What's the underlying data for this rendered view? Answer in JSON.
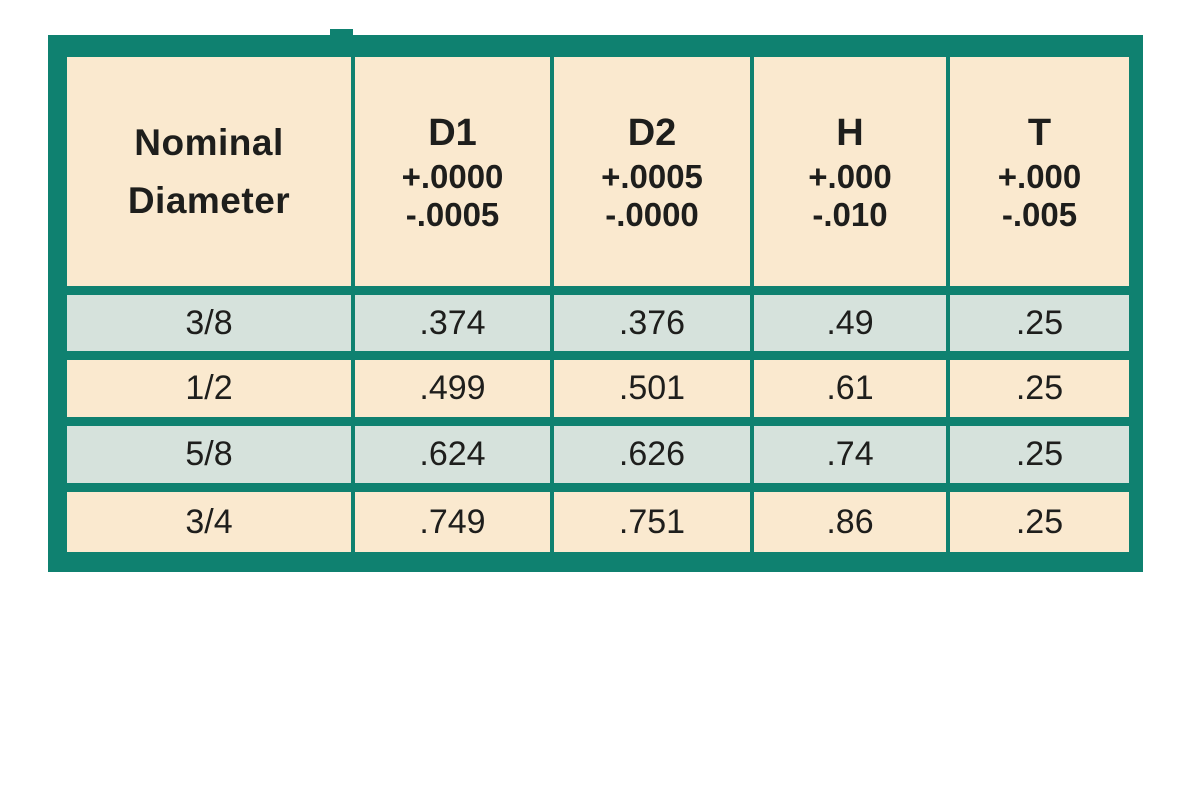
{
  "colors": {
    "border_teal": "#0F8170",
    "header_cream": "#FAE9CF",
    "row_mint": "#D6E2DC",
    "row_cream": "#FAE9CF",
    "text": "#1E1E1C"
  },
  "table": {
    "header": {
      "nominal": {
        "line1": "Nominal",
        "line2": "Diameter"
      },
      "cols": [
        {
          "symbol": "D1",
          "plus": "+.0000",
          "minus": "-.0005"
        },
        {
          "symbol": "D2",
          "plus": "+.0005",
          "minus": "-.0000"
        },
        {
          "symbol": "H",
          "plus": "+.000",
          "minus": "-.010"
        },
        {
          "symbol": "T",
          "plus": "+.000",
          "minus": "-.005"
        }
      ]
    },
    "rows": [
      {
        "nominal": "3/8",
        "d1": ".374",
        "d2": ".376",
        "h": ".49",
        "t": ".25"
      },
      {
        "nominal": "1/2",
        "d1": ".499",
        "d2": ".501",
        "h": ".61",
        "t": ".25"
      },
      {
        "nominal": "5/8",
        "d1": ".624",
        "d2": ".626",
        "h": ".74",
        "t": ".25"
      },
      {
        "nominal": "3/4",
        "d1": ".749",
        "d2": ".751",
        "h": ".86",
        "t": ".25"
      }
    ]
  }
}
